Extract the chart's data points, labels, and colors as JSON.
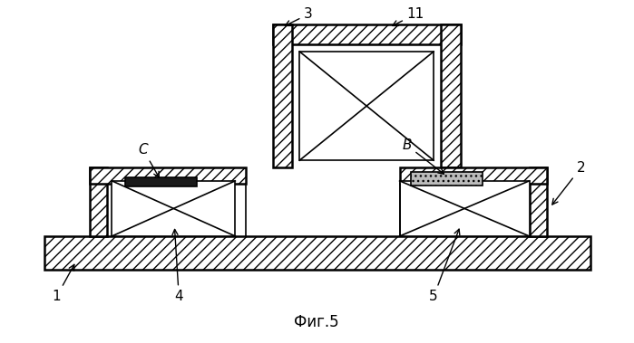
{
  "fig_label": "Фиг.5",
  "bg_color": "#ffffff",
  "line_color": "#000000",
  "figsize": [
    6.99,
    3.79
  ],
  "dpi": 100
}
